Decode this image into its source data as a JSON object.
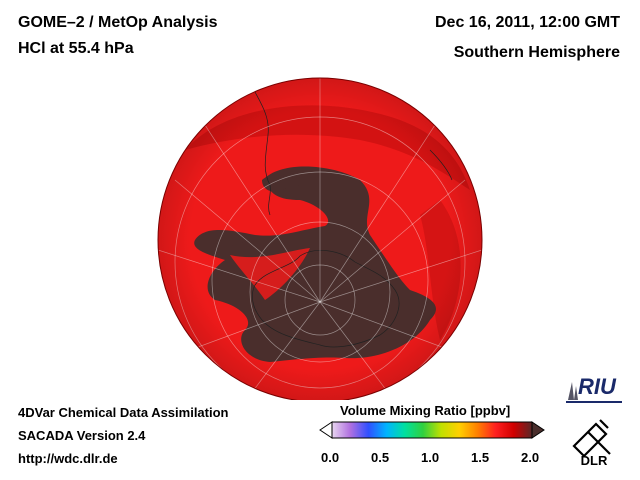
{
  "header": {
    "title_line1": "GOME–2 / MetOp Analysis",
    "title_line2": "HCl at 55.4 hPa",
    "date": "Dec 16, 2011, 12:00 GMT",
    "region": "Southern Hemisphere"
  },
  "footer": {
    "line1": "4DVar Chemical Data Assimilation",
    "line2": "SACADA Version 2.4",
    "line3": "http://wdc.dlr.de"
  },
  "colorbar": {
    "title": "Volume Mixing Ratio [ppbv]",
    "ticks": [
      "0.0",
      "0.5",
      "1.0",
      "1.5",
      "2.0"
    ],
    "min": 0.0,
    "max": 2.0,
    "colors": [
      "#e8d6f0",
      "#b070e0",
      "#3050ff",
      "#00b4ff",
      "#00e0a0",
      "#30d040",
      "#c0e000",
      "#ffd000",
      "#ff8000",
      "#ff2020",
      "#d00000",
      "#5a2828"
    ]
  },
  "logos": {
    "riu": "RIU",
    "dlr": "DLR"
  },
  "map": {
    "projection": "orthographic-south-polar",
    "high_value_color": "#ee1a1a",
    "polar_low_color": "#4a2e2c"
  }
}
